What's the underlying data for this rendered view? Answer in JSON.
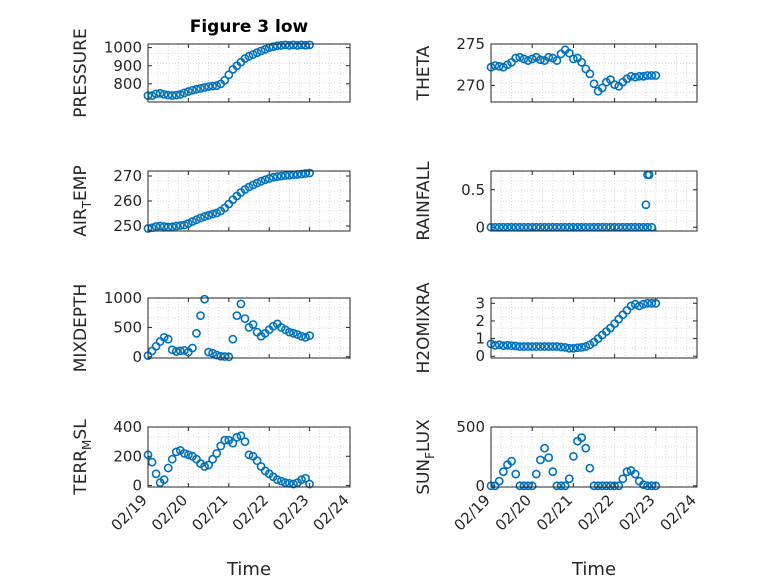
{
  "figure": {
    "title": "Figure 3 low",
    "marker_color": "#0072BD",
    "axis_color": "#262626",
    "grid_color": "#d0d0d0"
  },
  "chart_data": [
    {
      "type": "scatter",
      "ylabel": "PRESSURE",
      "title": "Figure 3 low",
      "xlabel": "",
      "xlim": [
        0,
        5
      ],
      "ylim": [
        700,
        1020
      ],
      "yticks": [
        800,
        900,
        1000
      ],
      "xticklabels": [],
      "grid": true,
      "x": [
        0.0,
        0.1,
        0.2,
        0.3,
        0.4,
        0.5,
        0.6,
        0.7,
        0.8,
        0.9,
        1.0,
        1.1,
        1.2,
        1.3,
        1.4,
        1.5,
        1.6,
        1.7,
        1.8,
        1.9,
        2.0,
        2.1,
        2.2,
        2.3,
        2.4,
        2.5,
        2.6,
        2.7,
        2.8,
        2.9,
        3.0,
        3.1,
        3.2,
        3.3,
        3.4,
        3.5,
        3.6,
        3.7,
        3.8,
        3.9,
        4.0
      ],
      "y": [
        735,
        735,
        745,
        748,
        742,
        738,
        736,
        738,
        742,
        750,
        758,
        765,
        770,
        775,
        780,
        785,
        788,
        790,
        800,
        820,
        850,
        880,
        900,
        920,
        940,
        952,
        962,
        972,
        982,
        990,
        1000,
        1005,
        1010,
        1012,
        1015,
        1012,
        1015,
        1012,
        1015,
        1013,
        1015
      ]
    },
    {
      "type": "scatter",
      "ylabel": "THETA",
      "xlabel": "",
      "xlim": [
        0,
        5
      ],
      "ylim": [
        268,
        275
      ],
      "yticks": [
        270,
        275
      ],
      "xticklabels": [],
      "grid": true,
      "x": [
        0.0,
        0.1,
        0.2,
        0.3,
        0.4,
        0.5,
        0.6,
        0.7,
        0.8,
        0.9,
        1.0,
        1.1,
        1.2,
        1.3,
        1.4,
        1.5,
        1.6,
        1.7,
        1.8,
        1.9,
        2.0,
        2.1,
        2.2,
        2.3,
        2.4,
        2.5,
        2.6,
        2.7,
        2.8,
        2.9,
        3.0,
        3.1,
        3.2,
        3.3,
        3.4,
        3.5,
        3.6,
        3.7,
        3.8,
        3.9,
        4.0
      ],
      "y": [
        272.2,
        272.4,
        272.3,
        272.2,
        272.5,
        272.8,
        273.3,
        273.4,
        273.2,
        273.0,
        273.2,
        273.4,
        273.1,
        273.0,
        273.4,
        273.3,
        273.0,
        273.8,
        274.3,
        273.9,
        273.2,
        273.3,
        272.8,
        272.0,
        271.4,
        270.2,
        269.3,
        269.7,
        270.4,
        270.7,
        270.1,
        269.9,
        270.4,
        270.8,
        271.1,
        271.0,
        271.1,
        271.1,
        271.2,
        271.2,
        271.2
      ]
    },
    {
      "type": "scatter",
      "ylabel": "AIR",
      "ylabel_sub": "T",
      "ylabel_tail": "EMP",
      "xlabel": "",
      "xlim": [
        0,
        5
      ],
      "ylim": [
        248,
        272
      ],
      "yticks": [
        250,
        260,
        270
      ],
      "xticklabels": [],
      "grid": true,
      "x": [
        0.0,
        0.1,
        0.2,
        0.3,
        0.4,
        0.5,
        0.6,
        0.7,
        0.8,
        0.9,
        1.0,
        1.1,
        1.2,
        1.3,
        1.4,
        1.5,
        1.6,
        1.7,
        1.8,
        1.9,
        2.0,
        2.1,
        2.2,
        2.3,
        2.4,
        2.5,
        2.6,
        2.7,
        2.8,
        2.9,
        3.0,
        3.1,
        3.2,
        3.3,
        3.4,
        3.5,
        3.6,
        3.7,
        3.8,
        3.9,
        4.0
      ],
      "y": [
        249,
        249.3,
        249.8,
        250,
        249.8,
        249.6,
        249.7,
        250,
        250.2,
        250.4,
        251,
        251.8,
        252.5,
        253.2,
        253.8,
        254.3,
        254.8,
        255.2,
        256,
        257.2,
        258.8,
        260.5,
        262,
        263.4,
        264.6,
        265.6,
        266.4,
        267.2,
        267.9,
        268.5,
        269.0,
        269.5,
        269.8,
        270.0,
        270.2,
        270.3,
        270.5,
        270.6,
        270.8,
        271.0,
        271.2
      ]
    },
    {
      "type": "scatter",
      "ylabel": "RAINFALL",
      "xlabel": "",
      "xlim": [
        0,
        5
      ],
      "ylim": [
        -0.05,
        0.75
      ],
      "yticks": [
        0,
        0.5
      ],
      "xticklabels": [],
      "grid": true,
      "x": [
        0.0,
        0.1,
        0.2,
        0.3,
        0.4,
        0.5,
        0.6,
        0.7,
        0.8,
        0.9,
        1.0,
        1.1,
        1.2,
        1.3,
        1.4,
        1.5,
        1.6,
        1.7,
        1.8,
        1.9,
        2.0,
        2.1,
        2.2,
        2.3,
        2.4,
        2.5,
        2.6,
        2.7,
        2.8,
        2.9,
        3.0,
        3.1,
        3.2,
        3.3,
        3.4,
        3.5,
        3.6,
        3.7,
        3.8,
        3.9,
        3.76,
        3.8,
        3.84
      ],
      "y": [
        0,
        0,
        0,
        0,
        0,
        0,
        0,
        0,
        0,
        0,
        0,
        0,
        0,
        0,
        0,
        0,
        0,
        0,
        0,
        0,
        0,
        0,
        0,
        0,
        0,
        0,
        0,
        0,
        0,
        0,
        0,
        0,
        0,
        0,
        0,
        0,
        0,
        0,
        0,
        0,
        0.3,
        0.7,
        0.7
      ]
    },
    {
      "type": "scatter",
      "ylabel": "MIXDEPTH",
      "xlabel": "",
      "xlim": [
        0,
        5
      ],
      "ylim": [
        -20,
        1000
      ],
      "yticks": [
        0,
        500,
        1000
      ],
      "xticklabels": [],
      "grid": true,
      "x": [
        0.0,
        0.1,
        0.2,
        0.3,
        0.4,
        0.5,
        0.6,
        0.7,
        0.8,
        0.9,
        1.0,
        1.1,
        1.2,
        1.3,
        1.4,
        1.5,
        1.6,
        1.7,
        1.8,
        1.9,
        2.0,
        2.1,
        2.2,
        2.3,
        2.4,
        2.5,
        2.6,
        2.7,
        2.8,
        2.9,
        3.0,
        3.1,
        3.2,
        3.3,
        3.4,
        3.5,
        3.6,
        3.7,
        3.8,
        3.9,
        4.0
      ],
      "y": [
        20,
        100,
        180,
        260,
        330,
        300,
        120,
        90,
        100,
        110,
        80,
        150,
        400,
        700,
        980,
        80,
        60,
        30,
        10,
        5,
        0,
        300,
        700,
        900,
        650,
        500,
        550,
        420,
        350,
        400,
        460,
        520,
        560,
        500,
        460,
        420,
        400,
        380,
        350,
        330,
        360
      ]
    },
    {
      "type": "scatter",
      "ylabel": "H2OMIXRA",
      "xlabel": "",
      "xlim": [
        0,
        5
      ],
      "ylim": [
        -0.1,
        3.3
      ],
      "yticks": [
        0,
        1,
        2,
        3
      ],
      "xticklabels": [],
      "grid": true,
      "x": [
        0.0,
        0.1,
        0.2,
        0.3,
        0.4,
        0.5,
        0.6,
        0.7,
        0.8,
        0.9,
        1.0,
        1.1,
        1.2,
        1.3,
        1.4,
        1.5,
        1.6,
        1.7,
        1.8,
        1.9,
        2.0,
        2.1,
        2.2,
        2.3,
        2.4,
        2.5,
        2.6,
        2.7,
        2.8,
        2.9,
        3.0,
        3.1,
        3.2,
        3.3,
        3.4,
        3.5,
        3.6,
        3.7,
        3.8,
        3.9,
        4.0
      ],
      "y": [
        0.7,
        0.62,
        0.65,
        0.6,
        0.62,
        0.6,
        0.58,
        0.55,
        0.55,
        0.55,
        0.55,
        0.55,
        0.55,
        0.55,
        0.55,
        0.55,
        0.55,
        0.52,
        0.5,
        0.45,
        0.45,
        0.48,
        0.5,
        0.55,
        0.65,
        0.8,
        1.0,
        1.2,
        1.4,
        1.6,
        1.85,
        2.1,
        2.35,
        2.6,
        2.85,
        2.95,
        2.85,
        2.95,
        3.0,
        3.0,
        3.0
      ]
    },
    {
      "type": "scatter",
      "ylabel": "TERR",
      "ylabel_sub": "M",
      "ylabel_tail": "SL",
      "xlabel": "Time",
      "xlim": [
        0,
        5
      ],
      "ylim": [
        -10,
        400
      ],
      "yticks": [
        0,
        200,
        400
      ],
      "xticklabels": [
        "02/19",
        "02/20",
        "02/21",
        "02/22",
        "02/23",
        "02/24"
      ],
      "grid": true,
      "x": [
        0.0,
        0.1,
        0.2,
        0.3,
        0.4,
        0.5,
        0.6,
        0.7,
        0.8,
        0.9,
        1.0,
        1.1,
        1.2,
        1.3,
        1.4,
        1.5,
        1.6,
        1.7,
        1.8,
        1.9,
        2.0,
        2.1,
        2.2,
        2.3,
        2.4,
        2.5,
        2.6,
        2.7,
        2.8,
        2.9,
        3.0,
        3.1,
        3.2,
        3.3,
        3.4,
        3.5,
        3.6,
        3.7,
        3.8,
        3.9,
        4.0
      ],
      "y": [
        210,
        160,
        80,
        20,
        40,
        120,
        180,
        230,
        240,
        220,
        210,
        200,
        180,
        150,
        130,
        140,
        180,
        220,
        270,
        310,
        310,
        290,
        330,
        340,
        300,
        210,
        200,
        170,
        130,
        100,
        80,
        60,
        40,
        30,
        20,
        15,
        10,
        20,
        40,
        50,
        10
      ]
    },
    {
      "type": "scatter",
      "ylabel": "SUN",
      "ylabel_sub": "F",
      "ylabel_tail": "LUX",
      "xlabel": "Time",
      "xlim": [
        0,
        5
      ],
      "ylim": [
        -10,
        500
      ],
      "yticks": [
        0,
        500
      ],
      "xticklabels": [
        "02/19",
        "02/20",
        "02/21",
        "02/22",
        "02/23",
        "02/24"
      ],
      "grid": true,
      "x": [
        0.0,
        0.1,
        0.2,
        0.3,
        0.4,
        0.5,
        0.6,
        0.7,
        0.8,
        0.9,
        1.0,
        1.1,
        1.2,
        1.3,
        1.4,
        1.5,
        1.6,
        1.7,
        1.8,
        1.9,
        2.0,
        2.1,
        2.2,
        2.3,
        2.4,
        2.5,
        2.6,
        2.7,
        2.8,
        2.9,
        3.0,
        3.1,
        3.2,
        3.3,
        3.4,
        3.5,
        3.6,
        3.7,
        3.8,
        3.9,
        4.0
      ],
      "y": [
        0,
        0,
        40,
        120,
        180,
        210,
        100,
        0,
        0,
        0,
        0,
        100,
        220,
        320,
        240,
        120,
        0,
        0,
        0,
        60,
        250,
        380,
        410,
        320,
        150,
        0,
        0,
        0,
        0,
        0,
        0,
        0,
        60,
        120,
        130,
        100,
        40,
        10,
        0,
        0,
        0
      ]
    }
  ]
}
